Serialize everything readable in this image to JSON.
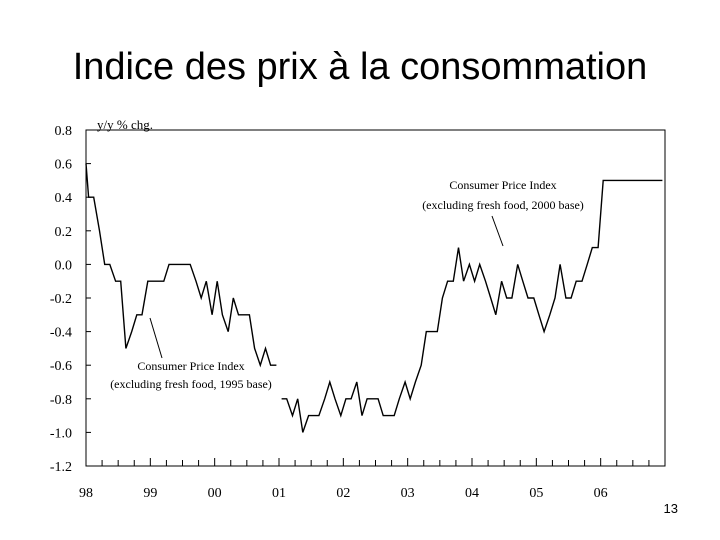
{
  "slide": {
    "title": "Indice des prix à la consommation",
    "page_number": "13"
  },
  "chart_data": {
    "type": "line",
    "title": "",
    "unit_label": "y/y % chg.",
    "ylim": [
      -1.2,
      0.8
    ],
    "yticks": [
      "0.8",
      "0.6",
      "0.4",
      "0.2",
      "0.0",
      "-0.2",
      "-0.4",
      "-0.6",
      "-0.8",
      "-1.0",
      "-1.2"
    ],
    "ytick_values": [
      0.8,
      0.6,
      0.4,
      0.2,
      0.0,
      -0.2,
      -0.4,
      -0.6,
      -0.8,
      -1.0,
      -1.2
    ],
    "xlim": [
      1998.0,
      2007.0
    ],
    "xticks": [
      "98",
      "99",
      "00",
      "01",
      "02",
      "03",
      "04",
      "05",
      "06"
    ],
    "xtick_values": [
      1998,
      1999,
      2000,
      2001,
      2002,
      2003,
      2004,
      2005,
      2006
    ],
    "grid": false,
    "series": [
      {
        "name": "Consumer Price Index (excluding fresh food, 1995 base)",
        "x": [
          1998.0,
          1998.04,
          1998.12,
          1998.21,
          1998.29,
          1998.37,
          1998.46,
          1998.54,
          1998.62,
          1998.71,
          1998.79,
          1998.87,
          1998.96,
          1999.04,
          1999.12,
          1999.21,
          1999.29,
          1999.37,
          1999.46,
          1999.54,
          1999.62,
          1999.71,
          1999.79,
          1999.87,
          1999.96,
          2000.04,
          2000.12,
          2000.21,
          2000.29,
          2000.37,
          2000.46,
          2000.54,
          2000.62,
          2000.71,
          2000.79,
          2000.87,
          2000.96
        ],
        "y": [
          0.6,
          0.4,
          0.4,
          0.2,
          0.0,
          0.0,
          -0.1,
          -0.1,
          -0.5,
          -0.4,
          -0.3,
          -0.3,
          -0.1,
          -0.1,
          -0.1,
          -0.1,
          0.0,
          0.0,
          0.0,
          0.0,
          0.0,
          -0.1,
          -0.2,
          -0.1,
          -0.3,
          -0.1,
          -0.3,
          -0.4,
          -0.2,
          -0.3,
          -0.3,
          -0.3,
          -0.5,
          -0.6,
          -0.5,
          -0.6,
          -0.6
        ]
      },
      {
        "name": "Consumer Price Index (excluding fresh food, 2000 base)",
        "x": [
          2001.04,
          2001.12,
          2001.21,
          2001.29,
          2001.37,
          2001.46,
          2001.54,
          2001.62,
          2001.71,
          2001.79,
          2001.87,
          2001.96,
          2002.04,
          2002.12,
          2002.21,
          2002.29,
          2002.37,
          2002.46,
          2002.54,
          2002.62,
          2002.71,
          2002.79,
          2002.87,
          2002.96,
          2003.04,
          2003.12,
          2003.21,
          2003.29,
          2003.37,
          2003.46,
          2003.54,
          2003.62,
          2003.71,
          2003.79,
          2003.87,
          2003.96,
          2004.04,
          2004.12,
          2004.21,
          2004.29,
          2004.37,
          2004.46,
          2004.54,
          2004.62,
          2004.71,
          2004.79,
          2004.87,
          2004.96,
          2005.04,
          2005.12,
          2005.21,
          2005.29,
          2005.37,
          2005.46,
          2005.54,
          2005.62,
          2005.71,
          2005.79,
          2005.87,
          2005.96,
          2006.04,
          2006.12,
          2006.21,
          2006.29,
          2006.37,
          2006.46,
          2006.54,
          2006.62,
          2006.71,
          2006.79,
          2006.87,
          2006.96
        ],
        "y": [
          -0.8,
          -0.8,
          -0.9,
          -0.8,
          -1.0,
          -0.9,
          -0.9,
          -0.9,
          -0.8,
          -0.7,
          -0.8,
          -0.9,
          -0.8,
          -0.8,
          -0.7,
          -0.9,
          -0.8,
          -0.8,
          -0.8,
          -0.9,
          -0.9,
          -0.9,
          -0.8,
          -0.7,
          -0.8,
          -0.7,
          -0.6,
          -0.4,
          -0.4,
          -0.4,
          -0.2,
          -0.1,
          -0.1,
          0.1,
          -0.1,
          0.0,
          -0.1,
          0.0,
          -0.1,
          -0.2,
          -0.3,
          -0.1,
          -0.2,
          -0.2,
          0.0,
          -0.1,
          -0.2,
          -0.2,
          -0.3,
          -0.4,
          -0.3,
          -0.2,
          0.0,
          -0.2,
          -0.2,
          -0.1,
          -0.1,
          0.0,
          0.1,
          0.1,
          0.5,
          0.5,
          0.5,
          0.5,
          0.5,
          0.5,
          0.5,
          0.5,
          0.5,
          0.5,
          0.5,
          0.5
        ]
      }
    ],
    "annotations": [
      {
        "lines": [
          "Consumer Price Index",
          "(excluding fresh food, 1995 base)"
        ],
        "target_series": 0
      },
      {
        "lines": [
          "Consumer Price Index",
          "(excluding fresh food, 2000 base)"
        ],
        "target_series": 1
      }
    ]
  }
}
